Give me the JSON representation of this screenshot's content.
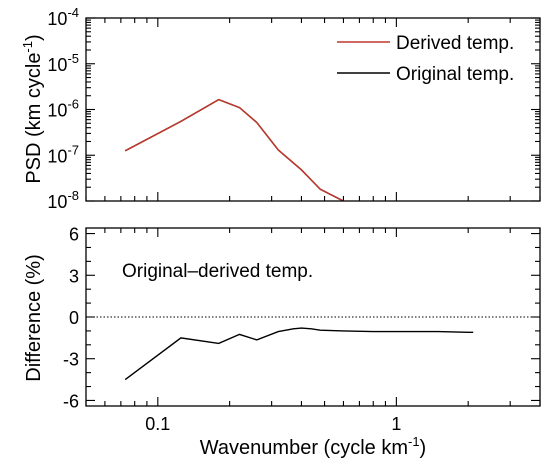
{
  "chart_data": [
    {
      "type": "line",
      "xscale": "log",
      "yscale": "log",
      "xlim": [
        0.05,
        4
      ],
      "ylim": [
        1e-08,
        0.0001
      ],
      "ylabel": "PSD (km cycle",
      "ylabel_sup": "-1",
      "ylabel_end": ")",
      "yticks": [
        {
          "value": 0.0001,
          "base": "10",
          "exp": "-4"
        },
        {
          "value": 1e-05,
          "base": "10",
          "exp": "-5"
        },
        {
          "value": 1e-06,
          "base": "10",
          "exp": "-6"
        },
        {
          "value": 1e-07,
          "base": "10",
          "exp": "-7"
        },
        {
          "value": 1e-08,
          "base": "10",
          "exp": "-8"
        }
      ],
      "legend_position": "top-right",
      "series": [
        {
          "name": "Original temp.",
          "color": "#000000",
          "x": [
            0.073,
            0.125,
            0.18,
            0.22,
            0.26,
            0.32,
            0.4,
            0.48,
            0.6
          ],
          "y": [
            1.25e-07,
            5.5e-07,
            1.65e-06,
            1.1e-06,
            5.2e-07,
            1.3e-07,
            4.8e-08,
            1.8e-08,
            1e-08
          ]
        },
        {
          "name": "Derived temp.",
          "color": "#c0392b",
          "x": [
            0.073,
            0.125,
            0.18,
            0.22,
            0.26,
            0.32,
            0.4,
            0.48,
            0.6
          ],
          "y": [
            1.25e-07,
            5.5e-07,
            1.65e-06,
            1.1e-06,
            5.2e-07,
            1.3e-07,
            4.8e-08,
            1.8e-08,
            1e-08
          ]
        }
      ]
    },
    {
      "type": "line",
      "xscale": "log",
      "xlim": [
        0.05,
        4
      ],
      "ylim": [
        -6.4,
        6.4
      ],
      "xlabel": "Wavenumber (cycle km",
      "xlabel_sup": "-1",
      "xlabel_end": ")",
      "ylabel": "Difference (%)",
      "xticks": [
        {
          "value": 0.1,
          "label": "0.1"
        },
        {
          "value": 1,
          "label": "1"
        }
      ],
      "yticks": [
        {
          "value": 6,
          "label": "6"
        },
        {
          "value": 3,
          "label": "3"
        },
        {
          "value": 0,
          "label": "0"
        },
        {
          "value": -3,
          "label": "-3"
        },
        {
          "value": -6,
          "label": "-6"
        }
      ],
      "zero_line": true,
      "annotation": "Original–derived temp.",
      "series": [
        {
          "color": "#000000",
          "x": [
            0.073,
            0.125,
            0.18,
            0.22,
            0.26,
            0.32,
            0.37,
            0.4,
            0.44,
            0.48,
            0.6,
            0.8,
            1.0,
            1.5,
            2.0,
            2.1
          ],
          "y": [
            -4.5,
            -1.5,
            -1.9,
            -1.25,
            -1.65,
            -1.05,
            -0.85,
            -0.8,
            -0.85,
            -0.95,
            -1.0,
            -1.05,
            -1.05,
            -1.05,
            -1.1,
            -1.1
          ]
        }
      ]
    }
  ]
}
